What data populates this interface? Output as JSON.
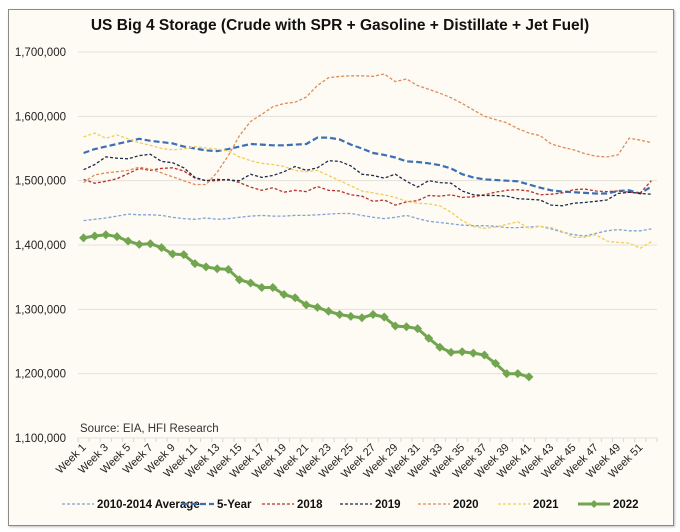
{
  "chart_data": {
    "type": "line",
    "title": "US Big 4 Storage (Crude with SPR + Gasoline + Distillate + Jet Fuel)",
    "xlabel": "",
    "ylabel": "",
    "annotation": "Source: EIA, HFI Research",
    "ylim": [
      1100000,
      1700000
    ],
    "yticks": [
      1100000,
      1200000,
      1300000,
      1400000,
      1500000,
      1600000,
      1700000
    ],
    "ytick_labels": [
      "1,100,000",
      "1,200,000",
      "1,300,000",
      "1,400,000",
      "1,500,000",
      "1,600,000",
      "1,700,000"
    ],
    "grid": "horizontal",
    "legend_position": "bottom",
    "x_categories_count": 52,
    "xtick_labels": [
      "Week 1",
      "Week 3",
      "Week 5",
      "Week 7",
      "Week 9",
      "Week 11",
      "Week 13",
      "Week 15",
      "Week 17",
      "Week 19",
      "Week 21",
      "Week 23",
      "Week 25",
      "Week 27",
      "Week 29",
      "Week 31",
      "Week 33",
      "Week 35",
      "Week 37",
      "Week 39",
      "Week 41",
      "Week 43",
      "Week 45",
      "Week 47",
      "Week 49",
      "Week 51"
    ],
    "series": [
      {
        "name": "2010-2014 Average",
        "color": "#7ea3d6",
        "style": "dashed-thin",
        "values": [
          1438000,
          1440000,
          1442000,
          1445000,
          1448000,
          1447000,
          1447000,
          1446000,
          1443000,
          1441000,
          1440000,
          1442000,
          1440000,
          1441000,
          1443000,
          1445000,
          1446000,
          1445000,
          1445000,
          1446000,
          1446000,
          1447000,
          1448000,
          1449000,
          1449000,
          1446000,
          1443000,
          1441000,
          1443000,
          1446000,
          1441000,
          1437000,
          1435000,
          1433000,
          1431000,
          1430000,
          1430000,
          1429000,
          1427000,
          1427000,
          1428000,
          1429000,
          1425000,
          1420000,
          1416000,
          1414000,
          1418000,
          1422000,
          1424000,
          1422000,
          1422000,
          1425000
        ]
      },
      {
        "name": "5-Year",
        "color": "#3c6fb5",
        "style": "dashed-thick",
        "values": [
          1543000,
          1549000,
          1553000,
          1557000,
          1561000,
          1565000,
          1562000,
          1560000,
          1558000,
          1553000,
          1550000,
          1547000,
          1546000,
          1549000,
          1553000,
          1557000,
          1556000,
          1555000,
          1555000,
          1556000,
          1557000,
          1567000,
          1567000,
          1564000,
          1556000,
          1550000,
          1543000,
          1540000,
          1536000,
          1530000,
          1529000,
          1527000,
          1524000,
          1519000,
          1510000,
          1505000,
          1502000,
          1501000,
          1500000,
          1499000,
          1494000,
          1489000,
          1485000,
          1483000,
          1482000,
          1481000,
          1480000,
          1480000,
          1484000,
          1485000,
          1480000,
          1491000
        ]
      },
      {
        "name": "2018",
        "color": "#b8312f",
        "style": "dashed-thin",
        "values": [
          1502000,
          1496000,
          1499000,
          1503000,
          1511000,
          1519000,
          1516000,
          1519000,
          1520000,
          1515000,
          1504000,
          1500000,
          1500000,
          1502000,
          1497000,
          1490000,
          1485000,
          1489000,
          1482000,
          1485000,
          1483000,
          1491000,
          1485000,
          1484000,
          1478000,
          1476000,
          1468000,
          1470000,
          1462000,
          1467000,
          1469000,
          1477000,
          1476000,
          1478000,
          1474000,
          1475000,
          1478000,
          1482000,
          1485000,
          1486000,
          1484000,
          1478000,
          1479000,
          1481000,
          1486000,
          1487000,
          1484000,
          1483000,
          1484000,
          1482000,
          1481000,
          1500000
        ]
      },
      {
        "name": "2019",
        "color": "#1e2a4a",
        "style": "dashed-thin",
        "values": [
          1517000,
          1525000,
          1537000,
          1535000,
          1534000,
          1539000,
          1541000,
          1530000,
          1528000,
          1520000,
          1505000,
          1500000,
          1502000,
          1501000,
          1500000,
          1510000,
          1505000,
          1508000,
          1514000,
          1522000,
          1516000,
          1520000,
          1531000,
          1530000,
          1523000,
          1510000,
          1508000,
          1504000,
          1510000,
          1499000,
          1490000,
          1500000,
          1497000,
          1496000,
          1484000,
          1478000,
          1477000,
          1477000,
          1476000,
          1472000,
          1471000,
          1470000,
          1462000,
          1461000,
          1465000,
          1466000,
          1468000,
          1470000,
          1480000,
          1482000,
          1480000,
          1479000
        ]
      },
      {
        "name": "2020",
        "color": "#e08a5a",
        "style": "dashed-thin",
        "values": [
          1497000,
          1509000,
          1512000,
          1514000,
          1516000,
          1521000,
          1518000,
          1512000,
          1506000,
          1500000,
          1494000,
          1494000,
          1513000,
          1539000,
          1570000,
          1592000,
          1603000,
          1615000,
          1620000,
          1622000,
          1630000,
          1648000,
          1660000,
          1662000,
          1663000,
          1663000,
          1662000,
          1666000,
          1654000,
          1658000,
          1648000,
          1642000,
          1636000,
          1629000,
          1620000,
          1610000,
          1600000,
          1595000,
          1590000,
          1581000,
          1574000,
          1570000,
          1557000,
          1552000,
          1548000,
          1542000,
          1538000,
          1537000,
          1540000,
          1566000,
          1563000,
          1559000
        ]
      },
      {
        "name": "2021",
        "color": "#f0cd5a",
        "style": "dashed-thin",
        "values": [
          1568000,
          1574000,
          1566000,
          1571000,
          1565000,
          1559000,
          1555000,
          1550000,
          1548000,
          1549000,
          1553000,
          1551000,
          1549000,
          1546000,
          1537000,
          1531000,
          1527000,
          1525000,
          1522000,
          1516000,
          1514000,
          1516000,
          1508000,
          1500000,
          1492000,
          1484000,
          1481000,
          1478000,
          1474000,
          1468000,
          1465000,
          1464000,
          1461000,
          1451000,
          1438000,
          1429000,
          1426000,
          1428000,
          1432000,
          1436000,
          1426000,
          1429000,
          1427000,
          1421000,
          1412000,
          1412000,
          1416000,
          1406000,
          1404000,
          1403000,
          1395000,
          1405000
        ]
      },
      {
        "name": "2022",
        "color": "#72a550",
        "style": "solid-markers",
        "values": [
          1411000,
          1414000,
          1416000,
          1413000,
          1406000,
          1401000,
          1402000,
          1396000,
          1386000,
          1385000,
          1371000,
          1366000,
          1363000,
          1362000,
          1346000,
          1341000,
          1334000,
          1334000,
          1323000,
          1318000,
          1307000,
          1303000,
          1297000,
          1292000,
          1289000,
          1287000,
          1292000,
          1288000,
          1274000,
          1273000,
          1270000,
          1255000,
          1241000,
          1233000,
          1234000,
          1232000,
          1229000,
          1216000,
          1200000,
          1200000,
          1195000
        ]
      }
    ]
  }
}
